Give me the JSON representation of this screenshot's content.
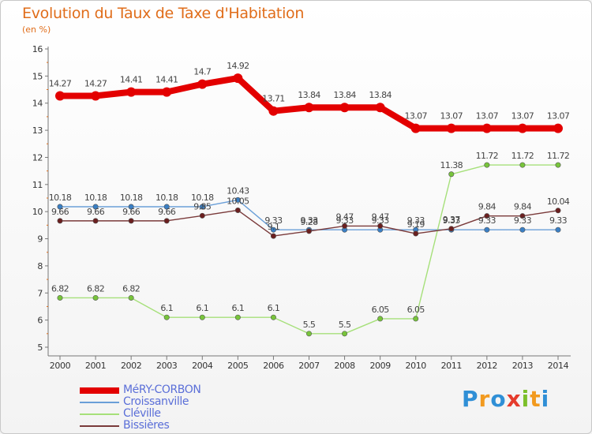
{
  "header": {
    "title": "Evolution du Taux de Taxe d'Habitation",
    "unit": "(en %)"
  },
  "brand": {
    "name": "Proxiti",
    "letters": [
      {
        "ch": "P",
        "color": "#2f8fd6"
      },
      {
        "ch": "r",
        "color": "#f29a1f"
      },
      {
        "ch": "o",
        "color": "#2f8fd6"
      },
      {
        "ch": "x",
        "color": "#e53b2c"
      },
      {
        "ch": "i",
        "color": "#7cbf2a"
      },
      {
        "ch": "t",
        "color": "#f29a1f"
      },
      {
        "ch": "i",
        "color": "#2f8fd6"
      }
    ]
  },
  "chart_data": {
    "type": "line",
    "title": "Evolution du Taux de Taxe d'Habitation",
    "ylabel": "(en %)",
    "xlabel": "",
    "x": [
      "2000",
      "2001",
      "2002",
      "2003",
      "2004",
      "2005",
      "2006",
      "2007",
      "2008",
      "2009",
      "2010",
      "2011",
      "2012",
      "2013",
      "2014"
    ],
    "ylim": [
      5,
      16
    ],
    "yticks": [
      5,
      6,
      7,
      8,
      9,
      10,
      11,
      12,
      13,
      14,
      15,
      16
    ],
    "grid": false,
    "legend_position": "bottom",
    "series": [
      {
        "name": "MéRY-CORBON",
        "color": "#e30000",
        "marker_color": "#e30000",
        "width": "thick",
        "values": [
          14.27,
          14.27,
          14.41,
          14.41,
          14.7,
          14.92,
          13.71,
          13.84,
          13.84,
          13.84,
          13.07,
          13.07,
          13.07,
          13.07,
          13.07
        ],
        "labels": [
          "14.27",
          "14.27",
          "14.41",
          "14.41",
          "14.7",
          "14.92",
          "13.71",
          "13.84",
          "13.84",
          "13.84",
          "13.07",
          "13.07",
          "13.07",
          "13.07",
          "13.07"
        ]
      },
      {
        "name": "Croissanville",
        "color": "#6a9fd8",
        "marker_color": "#3a7fc4",
        "width": "thin",
        "values": [
          10.18,
          10.18,
          10.18,
          10.18,
          10.18,
          10.43,
          9.33,
          9.33,
          9.33,
          9.33,
          9.33,
          9.33,
          9.33,
          9.33,
          9.33
        ],
        "labels": [
          "10.18",
          "10.18",
          "10.18",
          "10.18",
          "10.18",
          "10.43",
          "9.33",
          "9.33",
          "9.33",
          "9.33",
          "9.33",
          "9.33",
          "9.33",
          "9.33",
          "9.33"
        ]
      },
      {
        "name": "Cléville",
        "color": "#a6e07a",
        "marker_color": "#77c43a",
        "width": "thin",
        "values": [
          6.82,
          6.82,
          6.82,
          6.1,
          6.1,
          6.1,
          6.1,
          5.5,
          5.5,
          6.05,
          6.05,
          11.38,
          11.72,
          11.72,
          11.72
        ],
        "labels": [
          "6.82",
          "6.82",
          "6.82",
          "6.1",
          "6.1",
          "6.1",
          "6.1",
          "5.5",
          "5.5",
          "6.05",
          "6.05",
          "11.38",
          "11.72",
          "11.72",
          "11.72"
        ]
      },
      {
        "name": "Bissières",
        "color": "#7a3a3a",
        "marker_color": "#6b1f1f",
        "width": "thin",
        "values": [
          9.66,
          9.66,
          9.66,
          9.66,
          9.85,
          10.05,
          9.1,
          9.28,
          9.47,
          9.47,
          9.19,
          9.37,
          9.84,
          9.84,
          10.04
        ],
        "labels": [
          "9.66",
          "9.66",
          "9.66",
          "9.66",
          "9.85",
          "10.05",
          "9.1",
          "9.28",
          "9.47",
          "9.47",
          "9.19",
          "9.37",
          "9.84",
          "9.84",
          "10.04"
        ]
      }
    ]
  }
}
